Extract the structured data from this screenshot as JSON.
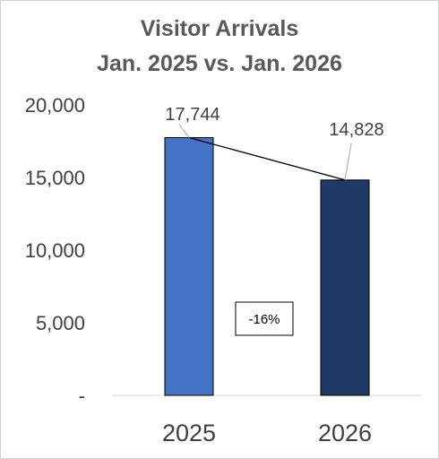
{
  "chart_data": {
    "type": "bar",
    "title": "Visitor Arrivals",
    "subtitle": "Jan. 2025 vs. Jan. 2026",
    "categories": [
      "2025",
      "2026"
    ],
    "values": [
      17744,
      14828
    ],
    "data_labels": [
      "17,744",
      "14,828"
    ],
    "ylim": [
      0,
      20000
    ],
    "yticks": [
      0,
      5000,
      10000,
      15000,
      20000
    ],
    "ytick_labels": [
      "-",
      "5,000",
      "10,000",
      "15,000",
      "20,000"
    ],
    "xlabel": "",
    "ylabel": "",
    "grid": false,
    "legend": "none",
    "bar_colors": [
      "#4472c4",
      "#1f3864"
    ],
    "annotation": {
      "text": "-16%",
      "trend_line": "connects bar tops"
    }
  }
}
